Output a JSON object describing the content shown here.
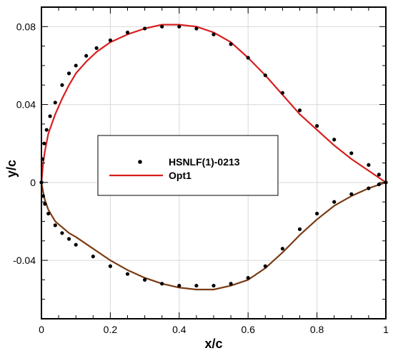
{
  "chart_data": {
    "type": "scatter",
    "title": "",
    "xlabel": "x/c",
    "ylabel": "y/c",
    "xlim": [
      0,
      1
    ],
    "ylim": [
      -0.07,
      0.09
    ],
    "xticks": [
      0,
      0.2,
      0.4,
      0.6,
      0.8,
      1
    ],
    "xtick_labels": [
      "0",
      "0.2",
      "0.4",
      "0.6",
      "0.8",
      "1"
    ],
    "yticks": [
      -0.04,
      0,
      0.04,
      0.08
    ],
    "ytick_labels": [
      "-0.04",
      "0",
      "0.04",
      "0.08"
    ],
    "grid": true,
    "legend_position": "center-left",
    "series": [
      {
        "name": "HSNLF(1)-0213",
        "style": "markers",
        "color": "#000000",
        "upper": {
          "x": [
            0.0,
            0.003,
            0.008,
            0.015,
            0.025,
            0.04,
            0.06,
            0.08,
            0.1,
            0.13,
            0.16,
            0.2,
            0.25,
            0.3,
            0.35,
            0.4,
            0.45,
            0.5,
            0.55,
            0.6,
            0.65,
            0.7,
            0.75,
            0.8,
            0.85,
            0.9,
            0.95,
            0.98,
            1.0
          ],
          "y": [
            0.0,
            0.012,
            0.02,
            0.027,
            0.034,
            0.041,
            0.05,
            0.056,
            0.06,
            0.065,
            0.069,
            0.073,
            0.077,
            0.079,
            0.08,
            0.08,
            0.079,
            0.076,
            0.071,
            0.064,
            0.055,
            0.046,
            0.037,
            0.029,
            0.022,
            0.015,
            0.009,
            0.004,
            0.0
          ]
        },
        "lower": {
          "x": [
            0.0,
            0.005,
            0.01,
            0.02,
            0.04,
            0.06,
            0.08,
            0.1,
            0.15,
            0.2,
            0.25,
            0.3,
            0.35,
            0.4,
            0.45,
            0.5,
            0.55,
            0.6,
            0.65,
            0.7,
            0.75,
            0.8,
            0.85,
            0.9,
            0.95,
            0.98,
            1.0
          ],
          "y": [
            0.0,
            -0.007,
            -0.011,
            -0.016,
            -0.022,
            -0.026,
            -0.029,
            -0.032,
            -0.038,
            -0.043,
            -0.047,
            -0.05,
            -0.052,
            -0.053,
            -0.053,
            -0.053,
            -0.052,
            -0.049,
            -0.043,
            -0.034,
            -0.024,
            -0.016,
            -0.01,
            -0.006,
            -0.003,
            -0.001,
            0.0
          ]
        }
      },
      {
        "name": "Opt1",
        "style": "line",
        "color": "#d81e1e",
        "lower_color": "#7a3a12",
        "upper": {
          "x": [
            0.0,
            0.005,
            0.01,
            0.02,
            0.04,
            0.06,
            0.08,
            0.1,
            0.13,
            0.16,
            0.2,
            0.25,
            0.3,
            0.35,
            0.4,
            0.45,
            0.5,
            0.55,
            0.6,
            0.65,
            0.7,
            0.75,
            0.8,
            0.85,
            0.9,
            0.95,
            1.0
          ],
          "y": [
            0.0,
            0.01,
            0.016,
            0.025,
            0.035,
            0.043,
            0.05,
            0.056,
            0.062,
            0.067,
            0.072,
            0.076,
            0.079,
            0.081,
            0.081,
            0.08,
            0.077,
            0.072,
            0.064,
            0.055,
            0.045,
            0.035,
            0.027,
            0.019,
            0.012,
            0.006,
            0.0
          ]
        },
        "lower": {
          "x": [
            0.0,
            0.005,
            0.01,
            0.02,
            0.04,
            0.06,
            0.08,
            0.1,
            0.15,
            0.2,
            0.25,
            0.3,
            0.35,
            0.4,
            0.45,
            0.5,
            0.55,
            0.6,
            0.65,
            0.7,
            0.75,
            0.8,
            0.85,
            0.9,
            0.95,
            1.0
          ],
          "y": [
            0.0,
            -0.005,
            -0.009,
            -0.014,
            -0.02,
            -0.023,
            -0.026,
            -0.028,
            -0.034,
            -0.04,
            -0.045,
            -0.049,
            -0.052,
            -0.054,
            -0.055,
            -0.055,
            -0.053,
            -0.05,
            -0.044,
            -0.036,
            -0.027,
            -0.019,
            -0.012,
            -0.007,
            -0.003,
            0.0
          ]
        }
      }
    ]
  }
}
